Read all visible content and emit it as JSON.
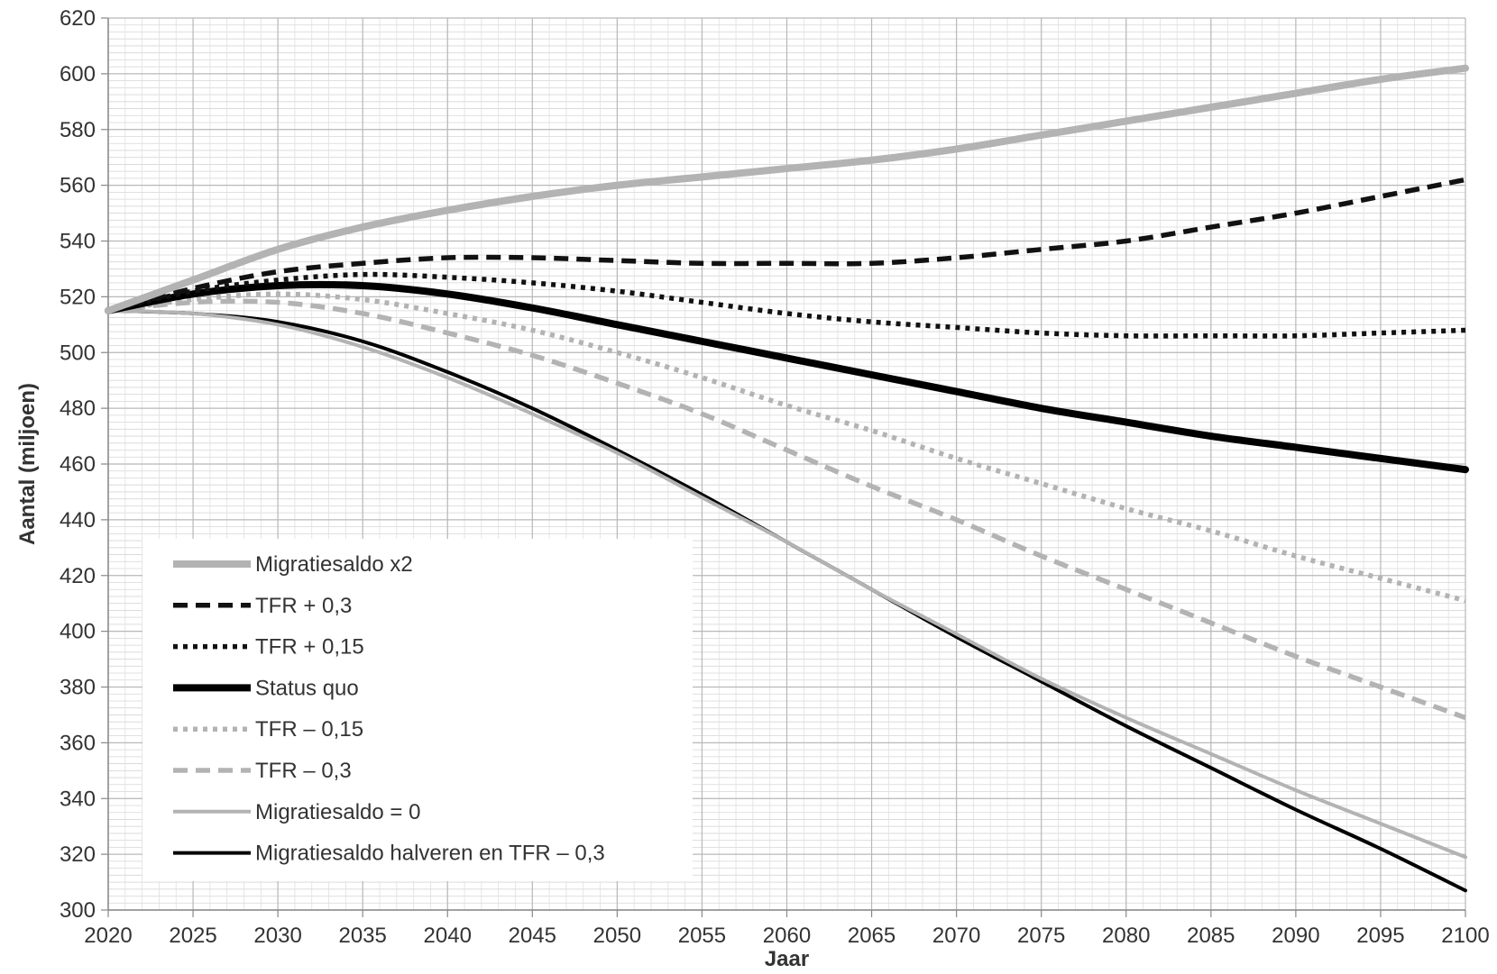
{
  "chart_data": {
    "type": "line",
    "xlabel": "Jaar",
    "ylabel": "Aantal (miljoen)",
    "xlim": [
      2020,
      2100
    ],
    "ylim": [
      300,
      620
    ],
    "x_ticks": [
      2020,
      2025,
      2030,
      2035,
      2040,
      2045,
      2050,
      2055,
      2060,
      2065,
      2070,
      2075,
      2080,
      2085,
      2090,
      2095,
      2100
    ],
    "y_ticks": [
      300,
      320,
      340,
      360,
      380,
      400,
      420,
      440,
      460,
      480,
      500,
      520,
      540,
      560,
      580,
      600,
      620
    ],
    "grid": true,
    "legend_position": "bottom-left",
    "x": [
      2020,
      2025,
      2030,
      2035,
      2040,
      2045,
      2050,
      2055,
      2060,
      2065,
      2070,
      2075,
      2080,
      2085,
      2090,
      2095,
      2100
    ],
    "series": [
      {
        "name": "Migratiesaldo x2",
        "color": "#b3b3b3",
        "style": "solid-thick",
        "values": [
          515,
          526,
          537,
          545,
          551,
          556,
          560,
          563,
          566,
          569,
          573,
          578,
          583,
          588,
          593,
          598,
          602
        ]
      },
      {
        "name": "TFR + 0,3",
        "color": "#111111",
        "style": "dashed",
        "values": [
          515,
          523,
          529,
          532,
          534,
          534,
          533,
          532,
          532,
          532,
          534,
          537,
          540,
          545,
          550,
          556,
          562
        ]
      },
      {
        "name": "TFR + 0,15",
        "color": "#111111",
        "style": "dotted",
        "values": [
          515,
          522,
          526,
          528,
          527,
          525,
          522,
          518,
          514,
          511,
          509,
          507,
          506,
          506,
          506,
          507,
          508
        ]
      },
      {
        "name": "Status quo",
        "color": "#000000",
        "style": "solid-bold",
        "values": [
          515,
          521,
          524,
          524,
          521,
          516,
          510,
          504,
          498,
          492,
          486,
          480,
          475,
          470,
          466,
          462,
          458
        ]
      },
      {
        "name": "TFR – 0,15",
        "color": "#b3b3b3",
        "style": "dotted",
        "values": [
          515,
          519,
          521,
          519,
          514,
          508,
          500,
          491,
          481,
          472,
          462,
          453,
          444,
          436,
          427,
          419,
          411
        ]
      },
      {
        "name": "TFR – 0,3",
        "color": "#b3b3b3",
        "style": "dashed",
        "values": [
          515,
          518,
          518,
          514,
          507,
          499,
          489,
          478,
          465,
          452,
          440,
          427,
          415,
          403,
          391,
          380,
          369
        ]
      },
      {
        "name": "Migratiesaldo = 0",
        "color": "#b3b3b3",
        "style": "solid",
        "values": [
          515,
          514,
          510,
          502,
          491,
          478,
          464,
          448,
          432,
          415,
          399,
          383,
          369,
          356,
          343,
          331,
          319
        ]
      },
      {
        "name": "Migratiesaldo halveren en TFR – 0,3",
        "color": "#000000",
        "style": "solid",
        "values": [
          515,
          514,
          511,
          504,
          493,
          480,
          465,
          449,
          432,
          415,
          398,
          382,
          366,
          351,
          336,
          322,
          307
        ]
      }
    ]
  }
}
